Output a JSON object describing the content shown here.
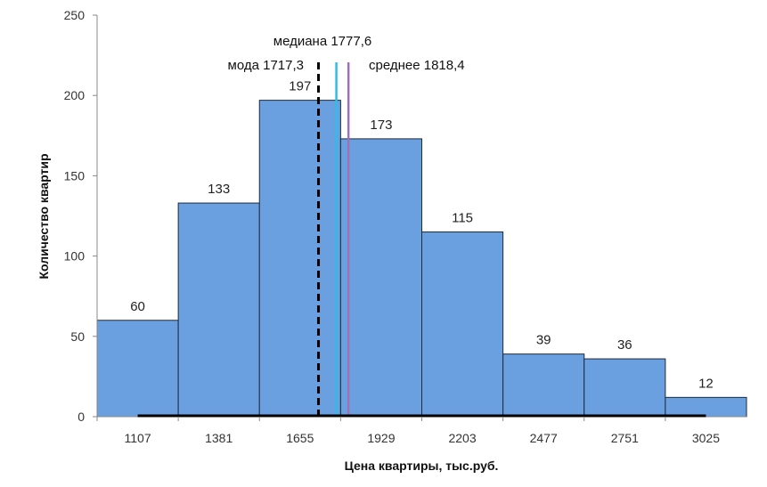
{
  "chart_data": {
    "type": "bar",
    "title": "",
    "xlabel": "Цена квартиры, тыс.руб.",
    "ylabel": "Количество квартир",
    "ylim": [
      0,
      250
    ],
    "yticks": [
      "0",
      "50",
      "100",
      "150",
      "200",
      "250"
    ],
    "x_range": [
      970,
      3162
    ],
    "bins": [
      {
        "from": 970,
        "to": 1244,
        "value": 60,
        "label": "60"
      },
      {
        "from": 1244,
        "to": 1518,
        "value": 133,
        "label": "133"
      },
      {
        "from": 1518,
        "to": 1792,
        "value": 197,
        "label": "197"
      },
      {
        "from": 1792,
        "to": 2066,
        "value": 173,
        "label": "173"
      },
      {
        "from": 2066,
        "to": 2340,
        "value": 115,
        "label": "115"
      },
      {
        "from": 2340,
        "to": 2614,
        "value": 39,
        "label": "39"
      },
      {
        "from": 2614,
        "to": 2888,
        "value": 36,
        "label": "36"
      },
      {
        "from": 2888,
        "to": 3162,
        "value": 12,
        "label": "12"
      }
    ],
    "xticks": [
      {
        "x": 1107,
        "label": "1107"
      },
      {
        "x": 1381,
        "label": "1381"
      },
      {
        "x": 1655,
        "label": "1655"
      },
      {
        "x": 1929,
        "label": "1929"
      },
      {
        "x": 2203,
        "label": "2203"
      },
      {
        "x": 2477,
        "label": "2477"
      },
      {
        "x": 2751,
        "label": "2751"
      },
      {
        "x": 3025,
        "label": "3025"
      }
    ],
    "baseline_x_range": [
      1107,
      3025
    ],
    "reference_lines": [
      {
        "name": "mode",
        "x": 1717.3,
        "label": "мода 1717,3",
        "color": "#000000",
        "dashed": true
      },
      {
        "name": "median",
        "x": 1777.6,
        "label": "медиана 1777,6",
        "color": "#33bbe6",
        "dashed": false
      },
      {
        "name": "mean",
        "x": 1818.4,
        "label": "среднее 1818,4",
        "color": "#9b72b5",
        "dashed": false
      }
    ],
    "bar_color": "#6aa0e0",
    "bar_edge_color": "#1f2a3a",
    "grid": false
  }
}
